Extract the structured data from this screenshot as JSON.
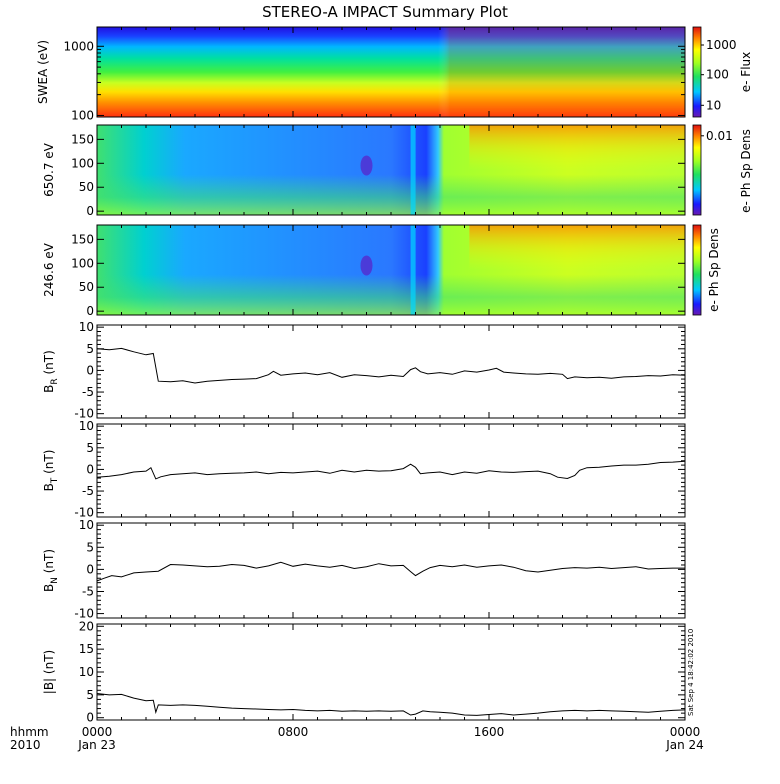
{
  "title": "STEREO-A IMPACT Summary Plot",
  "time_axis": {
    "corner_top": "hhmm",
    "corner_bottom": "2010",
    "ticks": [
      {
        "hour": 0,
        "top": "0000",
        "bottom": "Jan 23"
      },
      {
        "hour": 8,
        "top": "0800",
        "bottom": ""
      },
      {
        "hour": 16,
        "top": "1600",
        "bottom": ""
      },
      {
        "hour": 24,
        "top": "0000",
        "bottom": "Jan 24"
      }
    ]
  },
  "timestamp": "Sat Sep  4 18:42:02 2010",
  "spectrograms": [
    {
      "ylabel": "SWEA (eV)",
      "yscale": "log",
      "ylim": [
        95,
        1900
      ],
      "yticks": [
        {
          "v": 100,
          "t": "100"
        },
        {
          "v": 1000,
          "t": "1000"
        }
      ],
      "colorbar": {
        "label": "e- Flux",
        "ticks": [
          {
            "f": 0.13,
            "t": "10"
          },
          {
            "f": 0.47,
            "t": "100"
          },
          {
            "f": 0.8,
            "t": "1000"
          }
        ]
      }
    },
    {
      "ylabel": "650.7 eV",
      "yscale": "linear",
      "ylim": [
        -8,
        180
      ],
      "yticks": [
        {
          "v": 0,
          "t": "0"
        },
        {
          "v": 50,
          "t": "50"
        },
        {
          "v": 100,
          "t": "100"
        },
        {
          "v": 150,
          "t": "150"
        }
      ],
      "colorbar": {
        "label": "e- Ph Sp Dens",
        "ticks": [
          {
            "f": 0.88,
            "t": "0.01"
          }
        ]
      }
    },
    {
      "ylabel": "246.6 eV",
      "yscale": "linear",
      "ylim": [
        -8,
        180
      ],
      "yticks": [
        {
          "v": 0,
          "t": "0"
        },
        {
          "v": 50,
          "t": "50"
        },
        {
          "v": 100,
          "t": "100"
        },
        {
          "v": 150,
          "t": "150"
        }
      ],
      "colorbar": {
        "label": "e- Ph Sp Dens",
        "ticks": []
      }
    }
  ],
  "chart_data": {
    "type": "line",
    "x_unit": "hour",
    "xlim": [
      0,
      24
    ],
    "series": [
      {
        "ylabel": "B_R (nT)",
        "label_main": "B",
        "label_sub": "R",
        "label_unit": " (nT)",
        "ylim": [
          -11,
          10.5
        ],
        "yticks": [
          -10,
          -5,
          0,
          5,
          10
        ],
        "points": [
          [
            0,
            5
          ],
          [
            0.5,
            4.8
          ],
          [
            1,
            5.1
          ],
          [
            1.5,
            4.3
          ],
          [
            2,
            3.6
          ],
          [
            2.3,
            3.9
          ],
          [
            2.5,
            -2.5
          ],
          [
            3,
            -2.6
          ],
          [
            3.5,
            -2.4
          ],
          [
            4,
            -2.9
          ],
          [
            4.5,
            -2.5
          ],
          [
            5,
            -2.3
          ],
          [
            5.5,
            -2.1
          ],
          [
            6,
            -2.0
          ],
          [
            6.5,
            -1.9
          ],
          [
            7,
            -1.0
          ],
          [
            7.2,
            -0.2
          ],
          [
            7.5,
            -1.1
          ],
          [
            8,
            -0.8
          ],
          [
            8.5,
            -0.6
          ],
          [
            9,
            -1.0
          ],
          [
            9.5,
            -0.5
          ],
          [
            10,
            -1.6
          ],
          [
            10.5,
            -1.0
          ],
          [
            11,
            -1.2
          ],
          [
            11.5,
            -1.5
          ],
          [
            12,
            -1.1
          ],
          [
            12.5,
            -1.4
          ],
          [
            12.8,
            0.2
          ],
          [
            13,
            0.6
          ],
          [
            13.2,
            -0.3
          ],
          [
            13.5,
            -0.8
          ],
          [
            14,
            -0.5
          ],
          [
            14.5,
            -0.9
          ],
          [
            15,
            -0.1
          ],
          [
            15.5,
            -0.4
          ],
          [
            16,
            0.1
          ],
          [
            16.3,
            0.5
          ],
          [
            16.6,
            -0.4
          ],
          [
            17,
            -0.6
          ],
          [
            17.5,
            -0.8
          ],
          [
            18,
            -0.9
          ],
          [
            18.5,
            -0.7
          ],
          [
            19,
            -0.9
          ],
          [
            19.2,
            -1.9
          ],
          [
            19.5,
            -1.5
          ],
          [
            20,
            -1.7
          ],
          [
            20.5,
            -1.6
          ],
          [
            21,
            -1.8
          ],
          [
            21.5,
            -1.5
          ],
          [
            22,
            -1.4
          ],
          [
            22.5,
            -1.2
          ],
          [
            23,
            -1.3
          ],
          [
            23.5,
            -1.0
          ],
          [
            24,
            -1.1
          ]
        ]
      },
      {
        "ylabel": "B_T (nT)",
        "label_main": "B",
        "label_sub": "T",
        "label_unit": " (nT)",
        "ylim": [
          -11,
          10.5
        ],
        "yticks": [
          -10,
          -5,
          0,
          5,
          10
        ],
        "points": [
          [
            0,
            -1.8
          ],
          [
            0.5,
            -1.6
          ],
          [
            1,
            -1.2
          ],
          [
            1.5,
            -0.6
          ],
          [
            2,
            -0.4
          ],
          [
            2.2,
            0.4
          ],
          [
            2.4,
            -2.2
          ],
          [
            2.6,
            -1.7
          ],
          [
            3,
            -1.2
          ],
          [
            3.5,
            -1.0
          ],
          [
            4,
            -0.8
          ],
          [
            4.5,
            -1.2
          ],
          [
            5,
            -1.0
          ],
          [
            5.5,
            -0.9
          ],
          [
            6,
            -0.8
          ],
          [
            6.5,
            -0.6
          ],
          [
            7,
            -1.0
          ],
          [
            7.5,
            -0.7
          ],
          [
            8,
            -0.8
          ],
          [
            8.5,
            -0.6
          ],
          [
            9,
            -0.4
          ],
          [
            9.5,
            -0.9
          ],
          [
            10,
            -0.2
          ],
          [
            10.5,
            -0.6
          ],
          [
            11,
            -0.2
          ],
          [
            11.5,
            -0.4
          ],
          [
            12,
            -0.3
          ],
          [
            12.5,
            0.2
          ],
          [
            12.8,
            1.2
          ],
          [
            13,
            0.5
          ],
          [
            13.2,
            -1.0
          ],
          [
            13.5,
            -0.8
          ],
          [
            14,
            -0.6
          ],
          [
            14.5,
            -1.2
          ],
          [
            15,
            -0.6
          ],
          [
            15.5,
            -0.9
          ],
          [
            16,
            -0.3
          ],
          [
            16.5,
            -0.6
          ],
          [
            17,
            -0.7
          ],
          [
            17.5,
            -0.5
          ],
          [
            18,
            -0.4
          ],
          [
            18.5,
            -1.0
          ],
          [
            18.8,
            -1.8
          ],
          [
            19.2,
            -2.1
          ],
          [
            19.5,
            -1.4
          ],
          [
            19.7,
            -0.2
          ],
          [
            20,
            0.4
          ],
          [
            20.5,
            0.5
          ],
          [
            21,
            0.8
          ],
          [
            21.5,
            1.0
          ],
          [
            22,
            1.0
          ],
          [
            22.5,
            1.2
          ],
          [
            23,
            1.6
          ],
          [
            23.5,
            1.7
          ],
          [
            24,
            1.9
          ]
        ]
      },
      {
        "ylabel": "B_N (nT)",
        "label_main": "B",
        "label_sub": "N",
        "label_unit": " (nT)",
        "ylim": [
          -11,
          10.5
        ],
        "yticks": [
          -10,
          -5,
          0,
          5,
          10
        ],
        "points": [
          [
            0,
            -2.6
          ],
          [
            0.3,
            -2.0
          ],
          [
            0.6,
            -1.4
          ],
          [
            1,
            -1.7
          ],
          [
            1.5,
            -0.8
          ],
          [
            2,
            -0.6
          ],
          [
            2.5,
            -0.4
          ],
          [
            3,
            1.1
          ],
          [
            3.5,
            1.0
          ],
          [
            4,
            0.8
          ],
          [
            4.5,
            0.6
          ],
          [
            5,
            0.7
          ],
          [
            5.5,
            1.1
          ],
          [
            6,
            0.9
          ],
          [
            6.5,
            0.3
          ],
          [
            7,
            0.8
          ],
          [
            7.5,
            1.6
          ],
          [
            8,
            0.7
          ],
          [
            8.5,
            1.2
          ],
          [
            9,
            0.8
          ],
          [
            9.5,
            0.5
          ],
          [
            10,
            0.9
          ],
          [
            10.5,
            0.2
          ],
          [
            11,
            0.6
          ],
          [
            11.5,
            1.3
          ],
          [
            12,
            0.8
          ],
          [
            12.5,
            0.9
          ],
          [
            12.8,
            -0.5
          ],
          [
            13,
            -1.4
          ],
          [
            13.3,
            -0.4
          ],
          [
            13.6,
            0.4
          ],
          [
            14,
            0.9
          ],
          [
            14.5,
            0.6
          ],
          [
            15,
            1.0
          ],
          [
            15.5,
            0.5
          ],
          [
            16,
            0.8
          ],
          [
            16.5,
            1.0
          ],
          [
            17,
            0.5
          ],
          [
            17.5,
            -0.3
          ],
          [
            18,
            -0.6
          ],
          [
            18.5,
            -0.2
          ],
          [
            19,
            0.2
          ],
          [
            19.5,
            0.4
          ],
          [
            20,
            0.3
          ],
          [
            20.5,
            0.5
          ],
          [
            21,
            0.2
          ],
          [
            21.5,
            0.4
          ],
          [
            22,
            0.6
          ],
          [
            22.5,
            0.1
          ],
          [
            23,
            0.2
          ],
          [
            23.5,
            0.3
          ],
          [
            24,
            0.3
          ]
        ]
      },
      {
        "ylabel": "|B| (nT)",
        "label_main": "|B|",
        "label_sub": "",
        "label_unit": " (nT)",
        "ylim": [
          -0.5,
          20.5
        ],
        "yticks": [
          0,
          5,
          10,
          15,
          20
        ],
        "points": [
          [
            0,
            5.3
          ],
          [
            0.5,
            5.0
          ],
          [
            1,
            5.1
          ],
          [
            1.5,
            4.3
          ],
          [
            2,
            3.7
          ],
          [
            2.3,
            3.8
          ],
          [
            2.4,
            1.2
          ],
          [
            2.5,
            2.8
          ],
          [
            3,
            2.7
          ],
          [
            3.5,
            2.8
          ],
          [
            4,
            2.7
          ],
          [
            4.5,
            2.5
          ],
          [
            5,
            2.3
          ],
          [
            5.5,
            2.1
          ],
          [
            6,
            2.0
          ],
          [
            6.5,
            1.9
          ],
          [
            7,
            1.8
          ],
          [
            7.5,
            1.7
          ],
          [
            8,
            1.8
          ],
          [
            8.5,
            1.6
          ],
          [
            9,
            1.5
          ],
          [
            9.5,
            1.6
          ],
          [
            10,
            1.4
          ],
          [
            10.5,
            1.5
          ],
          [
            11,
            1.4
          ],
          [
            11.5,
            1.5
          ],
          [
            12,
            1.4
          ],
          [
            12.5,
            1.5
          ],
          [
            12.8,
            0.6
          ],
          [
            13,
            0.8
          ],
          [
            13.3,
            1.5
          ],
          [
            13.6,
            1.3
          ],
          [
            14,
            1.2
          ],
          [
            14.5,
            1.0
          ],
          [
            15,
            0.6
          ],
          [
            15.5,
            0.5
          ],
          [
            16,
            0.7
          ],
          [
            16.5,
            0.9
          ],
          [
            17,
            0.6
          ],
          [
            17.5,
            0.8
          ],
          [
            18,
            1.0
          ],
          [
            18.5,
            1.3
          ],
          [
            19,
            1.5
          ],
          [
            19.5,
            1.6
          ],
          [
            20,
            1.5
          ],
          [
            20.5,
            1.6
          ],
          [
            21,
            1.5
          ],
          [
            21.5,
            1.4
          ],
          [
            22,
            1.3
          ],
          [
            22.5,
            1.2
          ],
          [
            23,
            1.4
          ],
          [
            23.5,
            1.6
          ],
          [
            24,
            1.7
          ]
        ]
      }
    ]
  }
}
